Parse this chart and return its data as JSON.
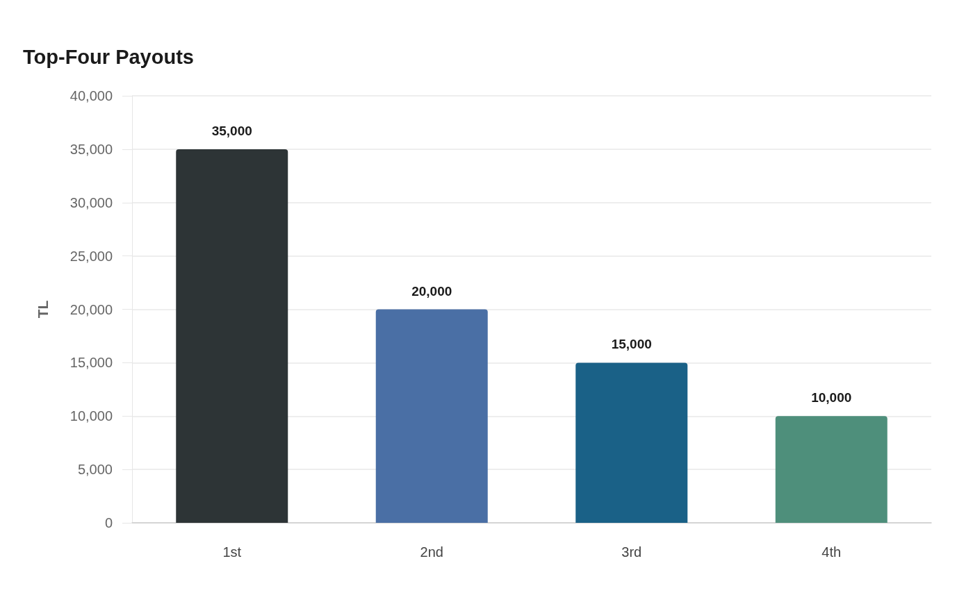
{
  "chart_data": {
    "type": "bar",
    "title": "Top-Four Payouts",
    "ylabel": "TL",
    "categories": [
      "1st",
      "2nd",
      "3rd",
      "4th"
    ],
    "values": [
      35000,
      20000,
      15000,
      10000
    ],
    "value_labels": [
      "35,000",
      "20,000",
      "15,000",
      "10,000"
    ],
    "colors": [
      "#2d3436",
      "#4a6fa5",
      "#1a6187",
      "#4e8f7b"
    ],
    "ylim": [
      0,
      40000
    ],
    "yticks": [
      0,
      {
        "value": 5000,
        "label": "5,000"
      },
      {
        "value": 10000,
        "label": "10,000"
      },
      {
        "value": 15000,
        "label": "15,000"
      },
      {
        "value": 20000,
        "label": "20,000"
      },
      {
        "value": 25000,
        "label": "25,000"
      },
      {
        "value": 30000,
        "label": "30,000"
      },
      {
        "value": 35000,
        "label": "35,000"
      },
      {
        "value": 40000,
        "label": "40,000"
      }
    ],
    "grid": "y"
  }
}
